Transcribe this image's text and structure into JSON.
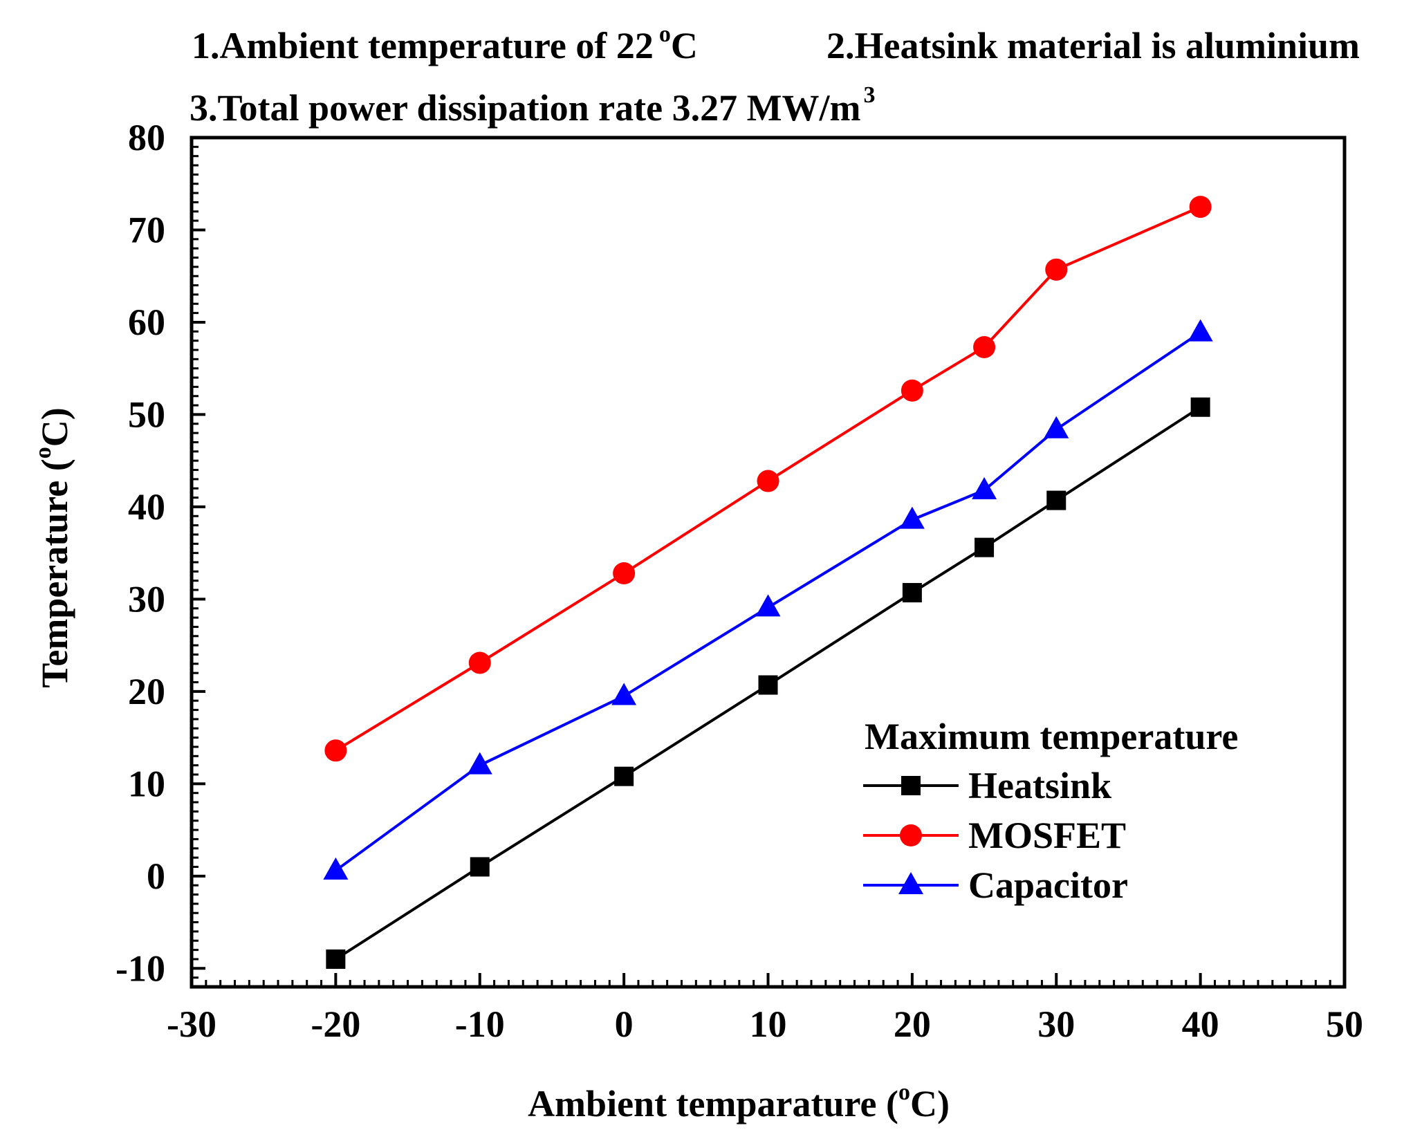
{
  "chart_data": {
    "type": "line",
    "notes": {
      "ambient": {
        "text": "1.Ambient temperature of 22",
        "sup": "o",
        "unit": "C"
      },
      "heatsink": {
        "text": "2.Heatsink material is aluminium"
      },
      "power": {
        "text": "3.Total power dissipation rate 3.27 MW/m",
        "sup": "3"
      }
    },
    "xlabel": {
      "text": "Ambient temparature (",
      "sup": "o",
      "unit": "C)"
    },
    "ylabel": {
      "text": "Temperature (",
      "sup": "o",
      "unit": "C)"
    },
    "xlim": [
      -30,
      50
    ],
    "ylim": [
      -12,
      80
    ],
    "x_ticks": [
      -30,
      -20,
      -10,
      0,
      10,
      20,
      30,
      40,
      50
    ],
    "y_ticks": [
      -10,
      0,
      10,
      20,
      30,
      40,
      50,
      60,
      70,
      80
    ],
    "x_tick_labels": [
      "-30",
      "-20",
      "-10",
      "0",
      "10",
      "20",
      "30",
      "40",
      "50"
    ],
    "y_tick_labels": [
      "-10",
      "0",
      "10",
      "20",
      "30",
      "40",
      "50",
      "60",
      "70",
      "80"
    ],
    "legend_title": "Maximum temperature",
    "legend_position": "lower-right",
    "x": [
      -20,
      -10,
      0,
      10,
      20,
      25,
      30,
      40
    ],
    "series": [
      {
        "name": "Heatsink",
        "color": "#000000",
        "marker": "square",
        "values": [
          -9,
          1,
          10.8,
          20.7,
          30.7,
          35.6,
          40.7,
          50.8
        ]
      },
      {
        "name": "MOSFET",
        "color": "#ff0000",
        "marker": "circle",
        "values": [
          13.6,
          23.1,
          32.8,
          42.8,
          52.6,
          57.3,
          65.7,
          72.5
        ]
      },
      {
        "name": "Capacitor",
        "color": "#0000ff",
        "marker": "triangle",
        "values": [
          0.6,
          12,
          19.5,
          29.1,
          38.6,
          41.8,
          48.4,
          58.9
        ]
      }
    ]
  }
}
